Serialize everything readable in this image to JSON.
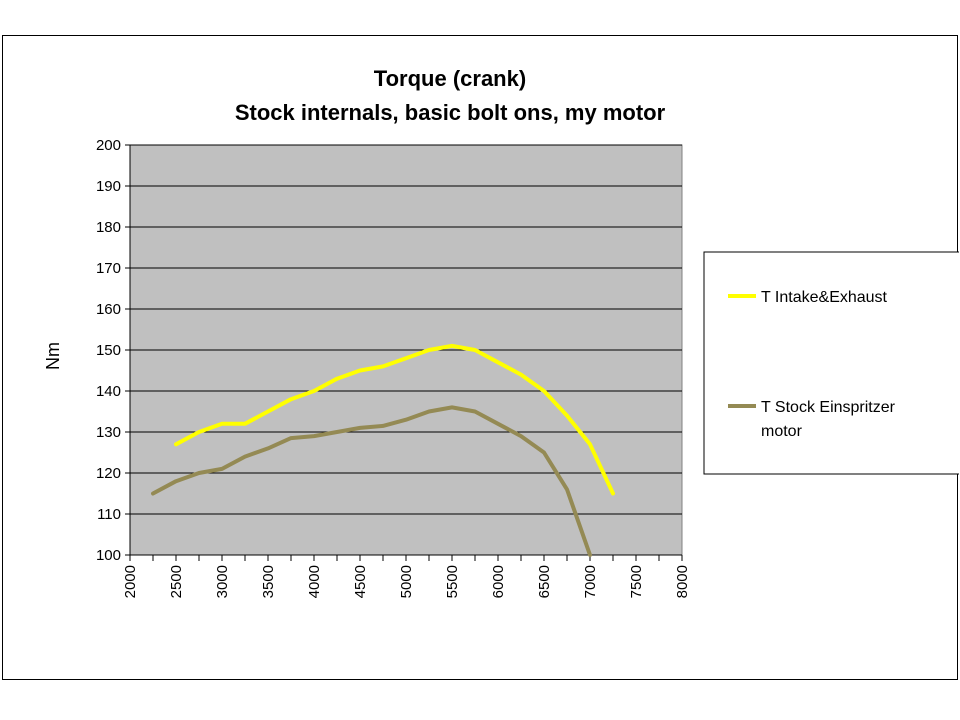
{
  "chart_data": {
    "type": "line",
    "title_lines": [
      "Torque (crank)",
      "Stock internals, basic bolt ons, my motor"
    ],
    "ylabel": "Nm",
    "xlabel": "",
    "xlim": [
      2000,
      8000
    ],
    "ylim": [
      100,
      200
    ],
    "x_ticks": [
      "2000",
      "2500",
      "3000",
      "3500",
      "4000",
      "4500",
      "5000",
      "5500",
      "6000",
      "6500",
      "7000",
      "7500",
      "8000"
    ],
    "y_ticks": [
      "100",
      "110",
      "120",
      "130",
      "140",
      "150",
      "160",
      "170",
      "180",
      "190",
      "200"
    ],
    "grid": "horizontal",
    "plot_background": "#c0c0c0",
    "legend_position": "right",
    "series": [
      {
        "name": "T Intake&Exhaust",
        "color": "#ffff00",
        "x": [
          2250,
          2500,
          2750,
          3000,
          3250,
          3500,
          3750,
          4000,
          4250,
          4500,
          4750,
          5000,
          5250,
          5500,
          5750,
          6000,
          6250,
          6500,
          6750,
          7000,
          7250
        ],
        "y": [
          127,
          130,
          132,
          132,
          135,
          138,
          140,
          143,
          145,
          146,
          148,
          150,
          151,
          150,
          147,
          144,
          140,
          134,
          127,
          115,
          null
        ]
      },
      {
        "name": "T Stock Einspritzer motor",
        "color": "#948a54",
        "x": [
          2000,
          2250,
          2500,
          2750,
          3000,
          3250,
          3500,
          3750,
          4000,
          4250,
          4500,
          4750,
          5000,
          5250,
          5500,
          5750,
          6000,
          6250,
          6500,
          6750,
          7000
        ],
        "y": [
          115,
          118,
          120,
          121,
          124,
          126,
          128.5,
          129,
          130,
          131,
          131.5,
          133,
          135,
          136,
          135,
          132,
          129,
          125,
          116,
          100,
          null
        ]
      }
    ]
  }
}
